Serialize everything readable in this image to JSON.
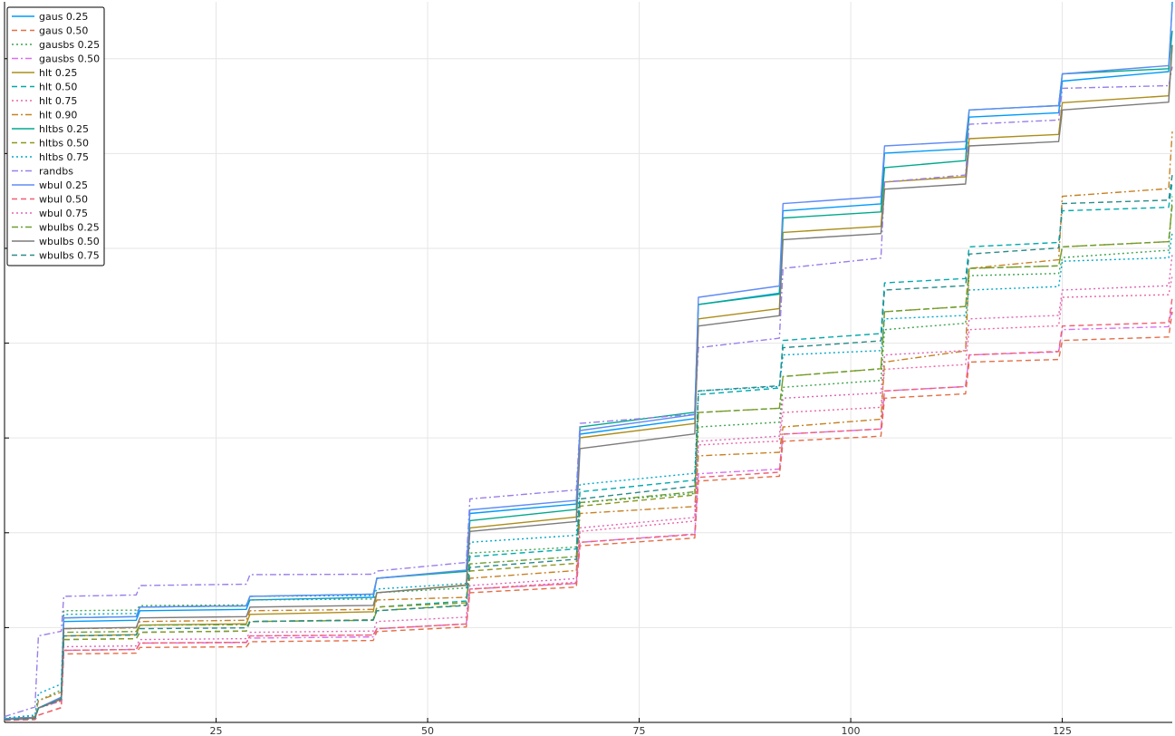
{
  "chart_data": {
    "type": "line",
    "title": "",
    "xlabel": "",
    "ylabel": "",
    "xlim": [
      0,
      138
    ],
    "ylim": [
      0,
      1
    ],
    "grid": true,
    "legend_position": "top-left",
    "x_ticks": [
      25,
      50,
      75,
      100,
      125
    ],
    "y_tick_count": 7,
    "x_steps": [
      0,
      4,
      7,
      16,
      29,
      44,
      55,
      68,
      82,
      92,
      104,
      114,
      125,
      138
    ],
    "series": [
      {
        "name": "gaus 0.25",
        "color": "#009AFA",
        "dash": "solid",
        "values": [
          0.005,
          0.02,
          0.14,
          0.155,
          0.17,
          0.2,
          0.29,
          0.4,
          0.58,
          0.71,
          0.79,
          0.84,
          0.89,
          1.0
        ]
      },
      {
        "name": "gaus 0.50",
        "color": "#E36F47",
        "dash": "dashed",
        "values": [
          0.003,
          0.01,
          0.095,
          0.104,
          0.112,
          0.126,
          0.18,
          0.245,
          0.335,
          0.39,
          0.45,
          0.5,
          0.53,
          0.57
        ]
      },
      {
        "name": "gausbs 0.25",
        "color": "#3EA44E",
        "dash": "dotted",
        "values": [
          0.005,
          0.03,
          0.155,
          0.162,
          0.17,
          0.18,
          0.235,
          0.305,
          0.41,
          0.465,
          0.545,
          0.62,
          0.645,
          0.73
        ]
      },
      {
        "name": "gausbs 0.50",
        "color": "#DA6FF0",
        "dash": "dashdot",
        "values": [
          0.003,
          0.02,
          0.1,
          0.11,
          0.117,
          0.13,
          0.185,
          0.25,
          0.345,
          0.4,
          0.46,
          0.51,
          0.545,
          0.58
        ]
      },
      {
        "name": "hlt 0.25",
        "color": "#AC8D19",
        "dash": "solid",
        "values": [
          0.005,
          0.02,
          0.12,
          0.135,
          0.15,
          0.18,
          0.27,
          0.395,
          0.56,
          0.68,
          0.75,
          0.81,
          0.86,
          0.94
        ]
      },
      {
        "name": "hlt 0.50",
        "color": "#00A9AD",
        "dash": "dashed",
        "values": [
          0.003,
          0.02,
          0.115,
          0.125,
          0.14,
          0.16,
          0.23,
          0.32,
          0.455,
          0.53,
          0.61,
          0.66,
          0.71,
          0.75
        ]
      },
      {
        "name": "hlt 0.75",
        "color": "#EA65A6",
        "dash": "dotted",
        "values": [
          0.003,
          0.02,
          0.1,
          0.11,
          0.12,
          0.13,
          0.185,
          0.265,
          0.385,
          0.43,
          0.49,
          0.545,
          0.59,
          0.62
        ]
      },
      {
        "name": "hlt 0.90",
        "color": "#C68225",
        "dash": "dashdot",
        "values": [
          0.005,
          0.03,
          0.13,
          0.14,
          0.155,
          0.17,
          0.2,
          0.29,
          0.37,
          0.41,
          0.5,
          0.63,
          0.73,
          0.82
        ]
      },
      {
        "name": "hltbs 0.25",
        "color": "#00A98D",
        "dash": "solid",
        "values": [
          0.005,
          0.02,
          0.145,
          0.16,
          0.175,
          0.2,
          0.28,
          0.41,
          0.58,
          0.7,
          0.77,
          0.85,
          0.9,
          0.96
        ]
      },
      {
        "name": "hltbs 0.50",
        "color": "#8E971E",
        "dash": "dashed",
        "values": [
          0.003,
          0.02,
          0.115,
          0.125,
          0.14,
          0.16,
          0.21,
          0.3,
          0.43,
          0.48,
          0.57,
          0.63,
          0.66,
          0.72
        ]
      },
      {
        "name": "hltbs 0.75",
        "color": "#00A8CB",
        "dash": "dotted",
        "values": [
          0.006,
          0.04,
          0.15,
          0.16,
          0.175,
          0.185,
          0.25,
          0.33,
          0.46,
          0.51,
          0.56,
          0.6,
          0.64,
          0.68
        ]
      },
      {
        "name": "randbs",
        "color": "#9B7FE8",
        "dash": "dashdot",
        "values": [
          0.008,
          0.12,
          0.175,
          0.19,
          0.205,
          0.21,
          0.31,
          0.415,
          0.52,
          0.63,
          0.75,
          0.83,
          0.88,
          0.91
        ]
      },
      {
        "name": "wbul 0.25",
        "color": "#608CF6",
        "dash": "solid",
        "values": [
          0.005,
          0.02,
          0.145,
          0.16,
          0.175,
          0.2,
          0.295,
          0.405,
          0.59,
          0.72,
          0.8,
          0.85,
          0.9,
          0.995
        ]
      },
      {
        "name": "wbul 0.50",
        "color": "#F05F73",
        "dash": "dashed",
        "values": [
          0.003,
          0.01,
          0.1,
          0.11,
          0.12,
          0.13,
          0.185,
          0.25,
          0.34,
          0.4,
          0.46,
          0.51,
          0.55,
          0.59
        ]
      },
      {
        "name": "wbul 0.75",
        "color": "#DD64B5",
        "dash": "dotted",
        "values": [
          0.004,
          0.02,
          0.105,
          0.115,
          0.125,
          0.14,
          0.19,
          0.27,
          0.39,
          0.45,
          0.51,
          0.56,
          0.6,
          0.65
        ]
      },
      {
        "name": "wbulbs 0.25",
        "color": "#6B9E32",
        "dash": "dashdot",
        "values": [
          0.004,
          0.02,
          0.125,
          0.135,
          0.14,
          0.155,
          0.22,
          0.305,
          0.43,
          0.48,
          0.57,
          0.63,
          0.66,
          0.72
        ]
      },
      {
        "name": "wbulbs 0.50",
        "color": "#7B7B7B",
        "dash": "solid",
        "values": [
          0.004,
          0.02,
          0.13,
          0.145,
          0.16,
          0.18,
          0.265,
          0.38,
          0.55,
          0.67,
          0.74,
          0.8,
          0.85,
          0.94
        ]
      },
      {
        "name": "wbulbs 0.75",
        "color": "#2A8C8A",
        "dash": "dashed",
        "values": [
          0.004,
          0.02,
          0.12,
          0.13,
          0.14,
          0.155,
          0.215,
          0.31,
          0.46,
          0.52,
          0.6,
          0.65,
          0.72,
          0.76
        ]
      }
    ]
  }
}
